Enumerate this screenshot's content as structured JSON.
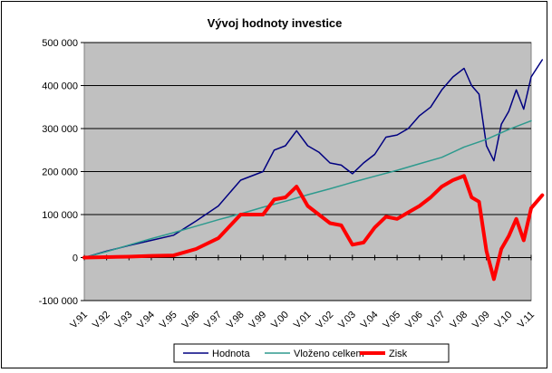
{
  "chart_data": {
    "type": "line",
    "title": "Vývoj hodnoty investice",
    "xlabel": "",
    "ylabel": "",
    "categories": [
      "V.91",
      "V.92",
      "V.93",
      "V.94",
      "V.95",
      "V.96",
      "V.97",
      "V.98",
      "V.99",
      "V.00",
      "V.01",
      "V.02",
      "V.03",
      "V.04",
      "V.05",
      "V.06",
      "V.07",
      "V.08",
      "V.09",
      "V.10",
      "V.11"
    ],
    "ylim": [
      -100000,
      500000
    ],
    "yticks": [
      -100000,
      0,
      100000,
      200000,
      300000,
      400000,
      500000
    ],
    "ytick_labels": [
      "-100 000",
      "0",
      "100 000",
      "200 000",
      "300 000",
      "400 000",
      "500 000"
    ],
    "grid": "horizontal",
    "plot_background": "#c0c0c0",
    "legend_position": "bottom",
    "series": [
      {
        "name": "Hodnota",
        "color": "#000080",
        "line_width": "thin",
        "points": [
          [
            "V.91",
            0
          ],
          [
            "V.92",
            15000
          ],
          [
            "V.93",
            28000
          ],
          [
            "V.94",
            40000
          ],
          [
            "V.95",
            52000
          ],
          [
            "V.96",
            85000
          ],
          [
            "V.97",
            120000
          ],
          [
            "V.98",
            180000
          ],
          [
            "V.99",
            200000
          ],
          [
            "V.99",
            250000
          ],
          [
            "V.00",
            260000
          ],
          [
            "V.00",
            295000
          ],
          [
            "V.01",
            260000
          ],
          [
            "V.01",
            245000
          ],
          [
            "V.02",
            220000
          ],
          [
            "V.02",
            215000
          ],
          [
            "V.03",
            195000
          ],
          [
            "V.03",
            220000
          ],
          [
            "V.04",
            240000
          ],
          [
            "V.04",
            280000
          ],
          [
            "V.05",
            285000
          ],
          [
            "V.05",
            300000
          ],
          [
            "V.06",
            330000
          ],
          [
            "V.06",
            350000
          ],
          [
            "V.07",
            390000
          ],
          [
            "V.07",
            420000
          ],
          [
            "V.08",
            440000
          ],
          [
            "V.08",
            400000
          ],
          [
            "V.08",
            380000
          ],
          [
            "V.09",
            260000
          ],
          [
            "V.09",
            225000
          ],
          [
            "V.09",
            310000
          ],
          [
            "V.10",
            340000
          ],
          [
            "V.10",
            390000
          ],
          [
            "V.10",
            345000
          ],
          [
            "V.11",
            420000
          ],
          [
            "V.11",
            460000
          ]
        ]
      },
      {
        "name": "Vloženo celkem",
        "color": "#2e9a8e",
        "line_width": "medium",
        "points": [
          [
            "V.91",
            0
          ],
          [
            "V.92",
            14000
          ],
          [
            "V.93",
            29000
          ],
          [
            "V.94",
            44000
          ],
          [
            "V.95",
            58000
          ],
          [
            "V.96",
            73000
          ],
          [
            "V.97",
            88000
          ],
          [
            "V.98",
            102000
          ],
          [
            "V.99",
            117000
          ],
          [
            "V.00",
            131000
          ],
          [
            "V.01",
            146000
          ],
          [
            "V.02",
            160000
          ],
          [
            "V.03",
            175000
          ],
          [
            "V.04",
            189000
          ],
          [
            "V.05",
            203000
          ],
          [
            "V.06",
            218000
          ],
          [
            "V.07",
            233000
          ],
          [
            "V.08",
            257000
          ],
          [
            "V.09",
            275000
          ],
          [
            "V.10",
            298000
          ],
          [
            "V.11",
            318000
          ]
        ]
      },
      {
        "name": "Zisk",
        "color": "#ff0000",
        "line_width": "thick",
        "points": [
          [
            "V.91",
            0
          ],
          [
            "V.92",
            1000
          ],
          [
            "V.93",
            2000
          ],
          [
            "V.94",
            4000
          ],
          [
            "V.95",
            5000
          ],
          [
            "V.96",
            20000
          ],
          [
            "V.97",
            45000
          ],
          [
            "V.98",
            100000
          ],
          [
            "V.99",
            100000
          ],
          [
            "V.99",
            135000
          ],
          [
            "V.00",
            140000
          ],
          [
            "V.00",
            165000
          ],
          [
            "V.01",
            120000
          ],
          [
            "V.01",
            100000
          ],
          [
            "V.02",
            80000
          ],
          [
            "V.02",
            75000
          ],
          [
            "V.03",
            30000
          ],
          [
            "V.03",
            35000
          ],
          [
            "V.04",
            70000
          ],
          [
            "V.04",
            95000
          ],
          [
            "V.05",
            90000
          ],
          [
            "V.05",
            105000
          ],
          [
            "V.06",
            120000
          ],
          [
            "V.06",
            140000
          ],
          [
            "V.07",
            165000
          ],
          [
            "V.07",
            180000
          ],
          [
            "V.08",
            190000
          ],
          [
            "V.08",
            140000
          ],
          [
            "V.08",
            130000
          ],
          [
            "V.09",
            15000
          ],
          [
            "V.09",
            -50000
          ],
          [
            "V.09",
            20000
          ],
          [
            "V.10",
            50000
          ],
          [
            "V.10",
            90000
          ],
          [
            "V.10",
            40000
          ],
          [
            "V.11",
            115000
          ],
          [
            "V.11",
            145000
          ]
        ]
      }
    ]
  }
}
